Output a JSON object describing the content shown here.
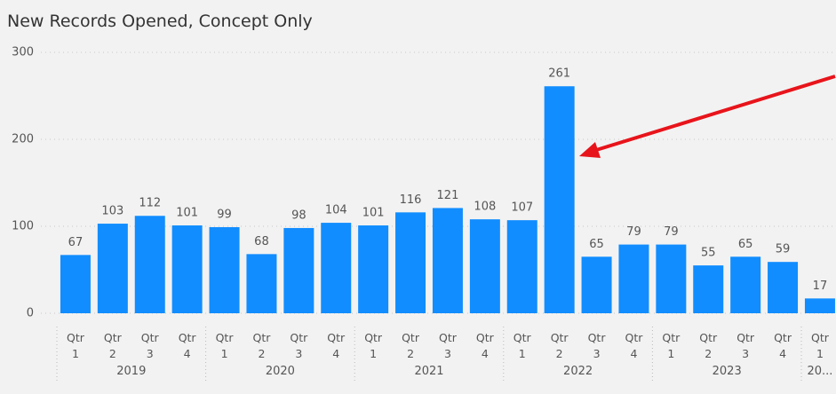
{
  "chart_data": {
    "type": "bar",
    "title": "New Records Opened, Concept Only",
    "categories": [
      "Qtr 1",
      "Qtr 2",
      "Qtr 3",
      "Qtr 4",
      "Qtr 1",
      "Qtr 2",
      "Qtr 3",
      "Qtr 4",
      "Qtr 1",
      "Qtr 2",
      "Qtr 3",
      "Qtr 4",
      "Qtr 1",
      "Qtr 2",
      "Qtr 3",
      "Qtr 4",
      "Qtr 1",
      "Qtr 2",
      "Qtr 3",
      "Qtr 4",
      "Qtr 1"
    ],
    "groups": [
      "2019",
      "2020",
      "2021",
      "2022",
      "2023",
      "20..."
    ],
    "values": [
      67,
      103,
      112,
      101,
      99,
      68,
      98,
      104,
      101,
      116,
      121,
      108,
      107,
      261,
      65,
      79,
      79,
      55,
      65,
      59,
      17
    ],
    "color": "#118dff",
    "ylim": [
      0,
      300
    ],
    "yticks": [
      0,
      100,
      200,
      300
    ],
    "grid": true
  }
}
